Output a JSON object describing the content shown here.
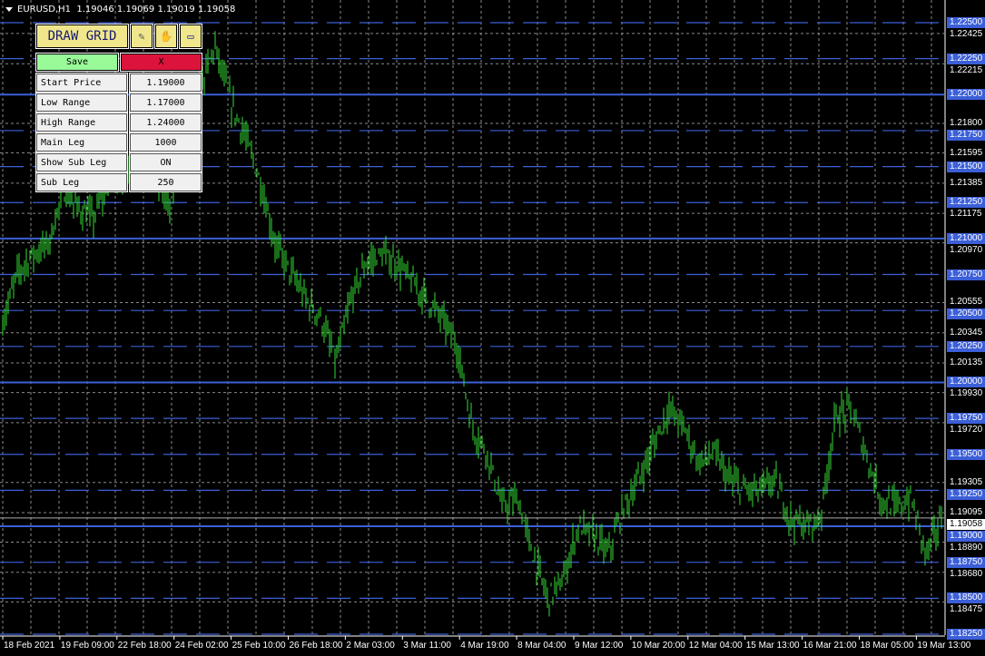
{
  "header": {
    "symbol": "EURUSD,H1",
    "ohlc": "1.19046 1.19069 1.19019 1.19058"
  },
  "panel": {
    "draw_grid_label": "DRAW GRID",
    "icons": [
      "pencil-icon",
      "hand-icon",
      "computer-icon"
    ],
    "save_label": "Save",
    "close_label": "X",
    "rows": [
      {
        "label": "Start Price",
        "value": "1.19000"
      },
      {
        "label": "Low Range",
        "value": "1.17000"
      },
      {
        "label": "High Range",
        "value": "1.24000"
      },
      {
        "label": "Main Leg",
        "value": "1000"
      },
      {
        "label": "Show Sub Leg",
        "value": "ON"
      },
      {
        "label": "Sub Leg",
        "value": "250"
      }
    ]
  },
  "price_axis": {
    "ticks": [
      "1.22425",
      "1.22215",
      "1.21800",
      "1.21595",
      "1.21385",
      "1.21175",
      "1.20970",
      "1.20555",
      "1.20345",
      "1.20135",
      "1.19930",
      "1.19720",
      "1.19305",
      "1.19095",
      "1.18890",
      "1.18680",
      "1.18475"
    ],
    "grid_levels": [
      "1.22500",
      "1.22250",
      "1.22000",
      "1.21750",
      "1.21500",
      "1.21250",
      "1.21000",
      "1.20750",
      "1.20500",
      "1.20250",
      "1.20000",
      "1.19750",
      "1.19500",
      "1.19250",
      "1.19000",
      "1.18750",
      "1.18500",
      "1.18250"
    ],
    "main_levels": [
      "1.22000",
      "1.21000",
      "1.20000",
      "1.19000"
    ],
    "current_price": "1.19058",
    "range": [
      1.1825,
      1.225
    ]
  },
  "time_axis": [
    "18 Feb 2021",
    "19 Feb 09:00",
    "22 Feb 18:00",
    "24 Feb 02:00",
    "25 Feb 10:00",
    "26 Feb 18:00",
    "2 Mar 03:00",
    "3 Mar 11:00",
    "4 Mar 19:00",
    "8 Mar 04:00",
    "9 Mar 12:00",
    "10 Mar 20:00",
    "12 Mar 04:00",
    "15 Mar 13:00",
    "16 Mar 21:00",
    "18 Mar 05:00",
    "19 Mar 13:00"
  ],
  "colors": {
    "background": "#000000",
    "bars": "#33dd33",
    "grid": "#8a8a8a",
    "grid_lines": "#3c5fd8",
    "draw_button": "#f0e68c",
    "save": "#98fb98",
    "close": "#dc143c"
  },
  "price_path": [
    1.2042,
    1.2077,
    1.2089,
    1.2096,
    1.2133,
    1.2121,
    1.2114,
    1.214,
    1.2146,
    1.2152,
    1.2146,
    1.2121,
    1.2171,
    1.2203,
    1.2234,
    1.2196,
    1.2171,
    1.214,
    1.2096,
    1.2077,
    1.2058,
    1.2045,
    1.2014,
    1.2058,
    1.2083,
    1.2089,
    1.2083,
    1.207,
    1.2058,
    1.2045,
    1.2026,
    1.1969,
    1.1951,
    1.1913,
    1.1919,
    1.1881,
    1.185,
    1.1862,
    1.19,
    1.1894,
    1.1881,
    1.1913,
    1.1932,
    1.1957,
    1.1982,
    1.1969,
    1.1944,
    1.1951,
    1.1932,
    1.1925,
    1.1925,
    1.1932,
    1.1906,
    1.19,
    1.1906,
    1.1976,
    1.1982,
    1.1951,
    1.1919,
    1.1913,
    1.1919,
    1.1881,
    1.1906
  ]
}
